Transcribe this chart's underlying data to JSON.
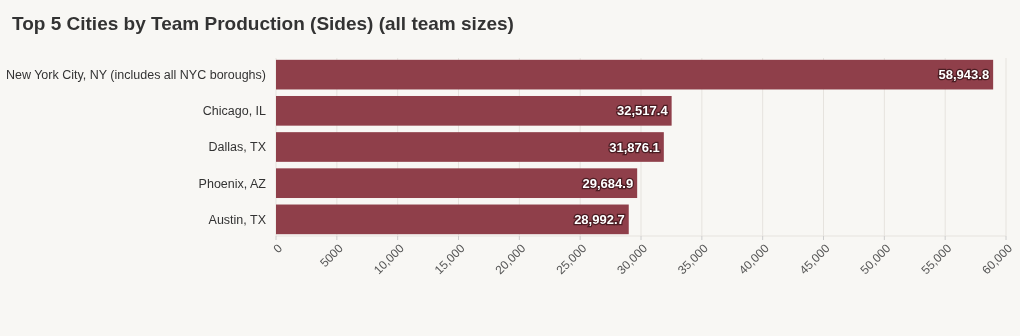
{
  "chart_data": {
    "type": "bar",
    "orientation": "horizontal",
    "title": "Top 5 Cities by Team Production (Sides) (all team sizes)",
    "categories": [
      "New York City, NY (includes all NYC boroughs)",
      "Chicago, IL",
      "Dallas, TX",
      "Phoenix, AZ",
      "Austin, TX"
    ],
    "values": [
      58943.8,
      32517.4,
      31876.1,
      29684.9,
      28992.7
    ],
    "value_labels": [
      "58,943.8",
      "32,517.4",
      "31,876.1",
      "29,684.9",
      "28,992.7"
    ],
    "color": "#8f3f4a",
    "xlim": [
      0,
      60000
    ],
    "xticks": [
      0,
      5000,
      {
        "value": 10000,
        "label": "10,000"
      },
      {
        "value": 15000,
        "label": "15,000"
      },
      {
        "value": 20000,
        "label": "20,000"
      },
      {
        "value": 25000,
        "label": "25,000"
      },
      {
        "value": 30000,
        "label": "30,000"
      },
      {
        "value": 35000,
        "label": "35,000"
      },
      {
        "value": 40000,
        "label": "40,000"
      },
      {
        "value": 45000,
        "label": "45,000"
      },
      {
        "value": 50000,
        "label": "50,000"
      },
      {
        "value": 55000,
        "label": "55,000"
      },
      {
        "value": 60000,
        "label": "60,000"
      }
    ],
    "grid": "x"
  }
}
